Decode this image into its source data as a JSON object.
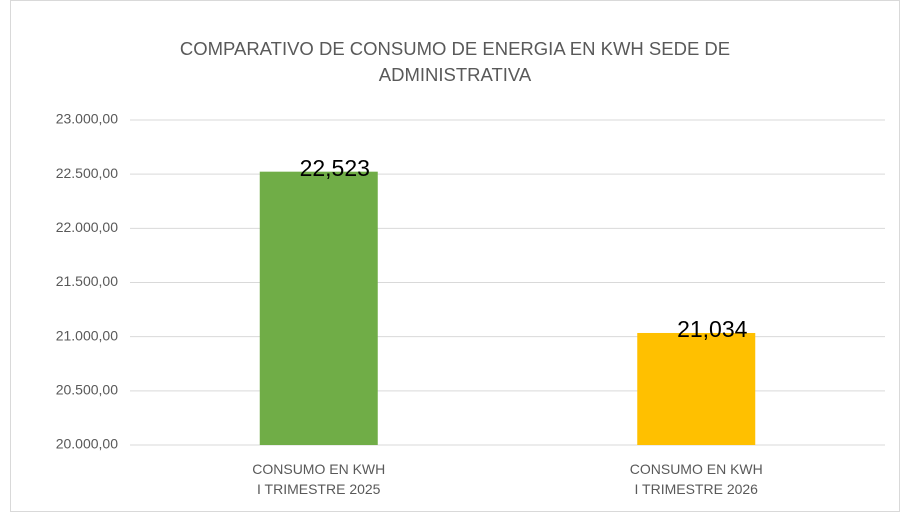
{
  "chart_data": {
    "type": "bar",
    "title": "COMPARATIVO DE CONSUMO DE ENERGIA EN KWH SEDE DE ADMINISTRATIVA",
    "categories": [
      "CONSUMO EN KWH I TRIMESTRE 2025",
      "CONSUMO EN KWH I TRIMESTRE 2026"
    ],
    "values": [
      22523,
      21034
    ],
    "value_labels": [
      "22,523",
      "21,034"
    ],
    "colors": [
      "#70ad47",
      "#ffc000"
    ],
    "ylim": [
      20000,
      23000
    ],
    "yticks": [
      {
        "value": 20000,
        "label": "20.000,00"
      },
      {
        "value": 20500,
        "label": "20.500,00"
      },
      {
        "value": 21000,
        "label": "21.000,00"
      },
      {
        "value": 21500,
        "label": "21.500,00"
      },
      {
        "value": 22000,
        "label": "22.000,00"
      },
      {
        "value": 22500,
        "label": "22.500,00"
      },
      {
        "value": 23000,
        "label": "23.000,00"
      }
    ],
    "grid": true
  }
}
